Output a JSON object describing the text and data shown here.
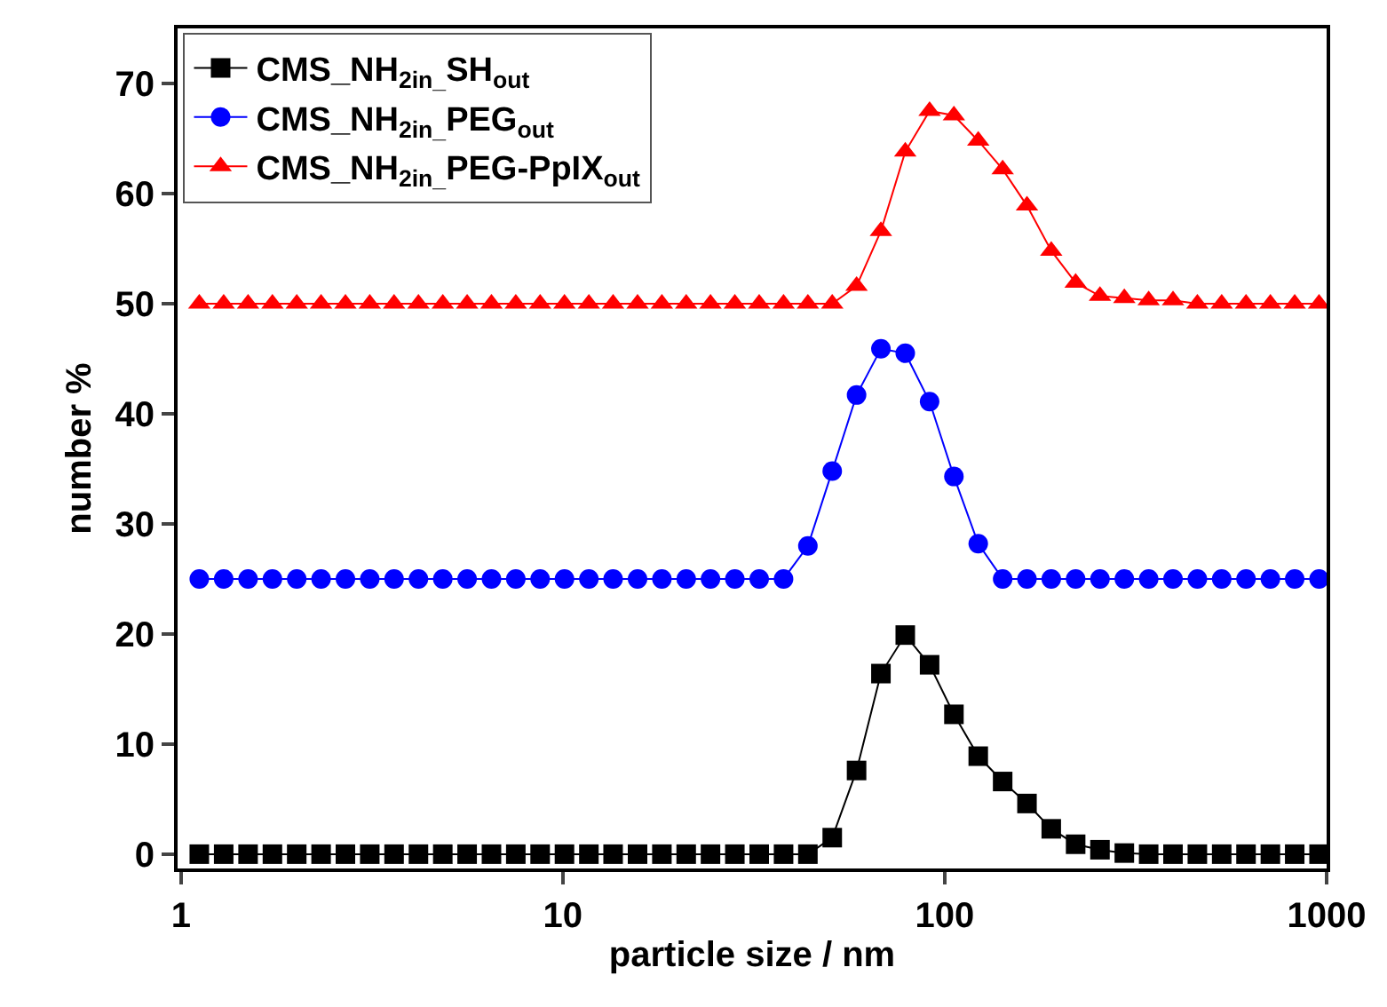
{
  "chart_data": {
    "type": "line",
    "xlabel": "particle size / nm",
    "ylabel": "number %",
    "x": [
      1.117,
      1.294,
      1.499,
      1.736,
      2.01,
      2.328,
      2.696,
      3.122,
      3.615,
      4.187,
      4.849,
      5.615,
      6.503,
      7.531,
      8.721,
      10.1,
      11.7,
      13.54,
      15.69,
      18.17,
      21.04,
      24.36,
      28.21,
      32.67,
      37.84,
      43.82,
      50.75,
      58.77,
      68.06,
      78.82,
      91.28,
      105.7,
      122.4,
      141.8,
      164.2,
      190.1,
      220.2,
      255.0,
      295.3,
      342.0,
      396.1,
      458.7,
      531.2,
      615.1,
      712.4,
      825.0,
      955.4
    ],
    "series": [
      {
        "name": "CMS_NH$_{2in_}$SH$_{out}$",
        "color": "#000000",
        "marker": "square",
        "values": [
          0,
          0,
          0,
          0,
          0,
          0,
          0,
          0,
          0,
          0,
          0,
          0,
          0,
          0,
          0,
          0,
          0,
          0,
          0,
          0,
          0,
          0,
          0,
          0,
          0,
          0,
          1.5,
          7.6,
          16.4,
          19.9,
          17.2,
          12.7,
          8.9,
          6.6,
          4.6,
          2.3,
          0.9,
          0.4,
          0.1,
          0,
          0,
          0,
          0,
          0,
          0,
          0,
          0
        ]
      },
      {
        "name": "CMS_NH$_{2in_}$PEG$_{out}$",
        "color": "#0000ff",
        "marker": "circle",
        "values": [
          25,
          25,
          25,
          25,
          25,
          25,
          25,
          25,
          25,
          25,
          25,
          25,
          25,
          25,
          25,
          25,
          25,
          25,
          25,
          25,
          25,
          25,
          25,
          25,
          25,
          28.0,
          34.8,
          41.7,
          45.9,
          45.5,
          41.1,
          34.3,
          28.2,
          25,
          25,
          25,
          25,
          25,
          25,
          25,
          25,
          25,
          25,
          25,
          25,
          25,
          25
        ]
      },
      {
        "name": "CMS_NH$_{2in_}$PEG-PpIX$_{out}$",
        "color": "#ff0000",
        "marker": "triangle",
        "values": [
          50,
          50,
          50,
          50,
          50,
          50,
          50,
          50,
          50,
          50,
          50,
          50,
          50,
          50,
          50,
          50,
          50,
          50,
          50,
          50,
          50,
          50,
          50,
          50,
          50,
          50,
          50,
          51.6,
          56.6,
          63.8,
          67.5,
          67.1,
          64.8,
          62.2,
          58.9,
          54.8,
          51.9,
          50.7,
          50.5,
          50.3,
          50.3,
          50,
          50,
          50,
          50,
          50,
          50
        ]
      }
    ],
    "log": "x",
    "xlim": [
      0.98,
      1000
    ],
    "xticks": [
      1,
      10,
      100,
      1000
    ],
    "ylim": [
      -1.3,
      75
    ],
    "yticks": [
      0,
      10,
      20,
      30,
      40,
      50,
      60,
      70
    ],
    "legend": "top left",
    "line_style": "solid"
  }
}
